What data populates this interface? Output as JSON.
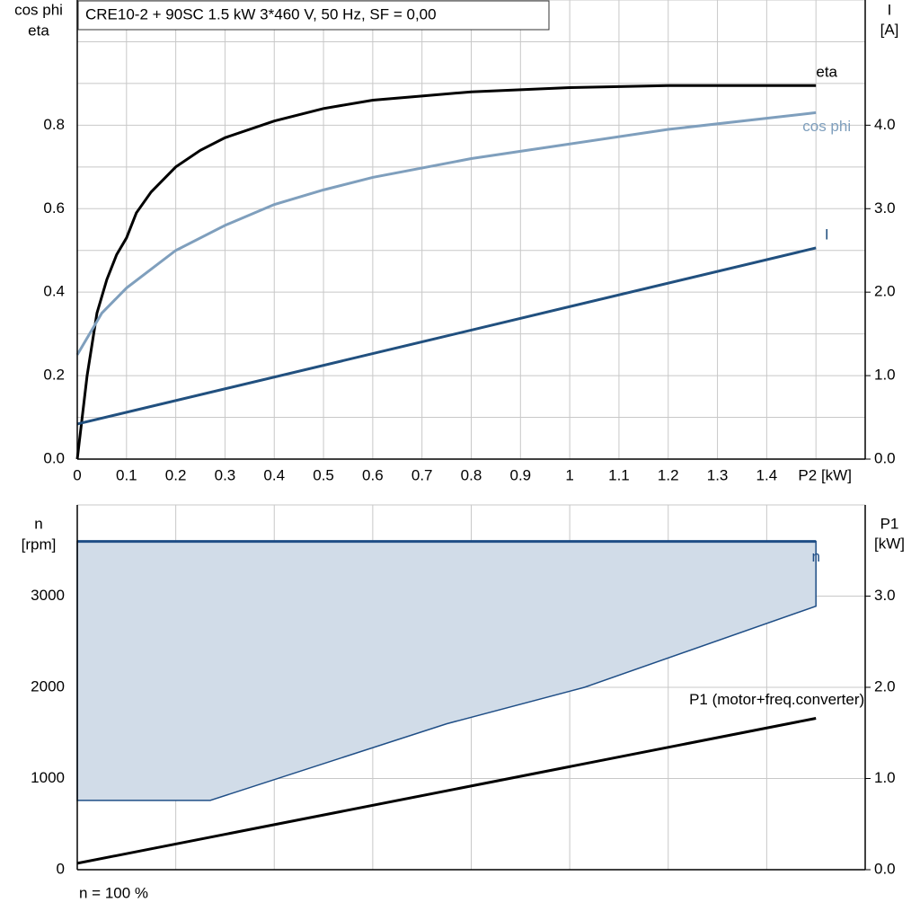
{
  "chart_data": [
    {
      "type": "line",
      "title": "CRE10-2 + 90SC   1.5 kW   3*460 V, 50 Hz, SF = 0,00",
      "ylabel": [
        "cos phi",
        "eta"
      ],
      "y2label": [
        "I",
        "[A]"
      ],
      "xlim": [
        0,
        1.6
      ],
      "xticks": [
        0,
        0.1,
        0.2,
        0.3,
        0.4,
        0.5,
        0.6,
        0.7,
        0.8,
        0.9,
        1.0,
        1.1,
        1.2,
        1.3,
        1.4,
        {
          "value": 1.5,
          "label": "P2 [kW]"
        }
      ],
      "ylim": [
        0,
        1.1
      ],
      "yticks": [
        {
          "value": 0,
          "label": "0.0"
        },
        0.2,
        0.4,
        0.6,
        0.8
      ],
      "y2lim": [
        0,
        5.5
      ],
      "y2ticks": [
        {
          "value": 0,
          "label": "0.0"
        },
        {
          "value": 1,
          "label": "1.0"
        },
        {
          "value": 2,
          "label": "2.0"
        },
        {
          "value": 3,
          "label": "3.0"
        },
        {
          "value": 4,
          "label": "4.0"
        }
      ],
      "grid": true,
      "minor_grid": true,
      "show_xtick_labels": true,
      "series": [
        {
          "name": "eta",
          "color": "#000000",
          "x": [
            0,
            0.02,
            0.04,
            0.06,
            0.08,
            0.1,
            0.12,
            0.15,
            0.2,
            0.25,
            0.3,
            0.4,
            0.5,
            0.6,
            0.7,
            0.8,
            1.0,
            1.2,
            1.5
          ],
          "values": [
            0,
            0.2,
            0.35,
            0.43,
            0.49,
            0.53,
            0.59,
            0.64,
            0.7,
            0.74,
            0.77,
            0.81,
            0.84,
            0.86,
            0.87,
            0.88,
            0.89,
            0.895,
            0.895
          ]
        },
        {
          "name": "cos phi",
          "color": "#7f9fbd",
          "x": [
            0,
            0.05,
            0.1,
            0.2,
            0.3,
            0.4,
            0.5,
            0.6,
            0.8,
            1.0,
            1.2,
            1.5
          ],
          "values": [
            0.25,
            0.35,
            0.41,
            0.5,
            0.56,
            0.61,
            0.645,
            0.675,
            0.72,
            0.755,
            0.79,
            0.83
          ]
        },
        {
          "name": "I",
          "color": "#21507f",
          "axis": "y2",
          "x": [
            0,
            1.5
          ],
          "values": [
            0.42,
            2.53
          ]
        }
      ]
    },
    {
      "type": "line",
      "ylabel": [
        "n",
        "[rpm]"
      ],
      "y2label": [
        "P1",
        "[kW]"
      ],
      "footer": "n = 100 %",
      "xlim": [
        0,
        1.6
      ],
      "xticks": [
        0.2,
        0.4,
        0.6,
        0.8,
        1.0,
        1.2,
        1.4
      ],
      "ylim": [
        0,
        4000
      ],
      "yticks": [
        0,
        1000,
        2000,
        3000
      ],
      "y2lim": [
        0,
        4
      ],
      "y2ticks": [
        {
          "value": 0,
          "label": "0.0"
        },
        {
          "value": 1,
          "label": "1.0"
        },
        {
          "value": 2,
          "label": "2.0"
        },
        {
          "value": 3,
          "label": "3.0"
        }
      ],
      "grid": true,
      "minor_grid": false,
      "show_xtick_labels": false,
      "range": {
        "color": "#d1dce8",
        "x": [
          0,
          0.27,
          0.75,
          1.03,
          1.5
        ],
        "values": [
          760,
          760,
          1600,
          2000,
          2890
        ]
      },
      "series": [
        {
          "name": "n",
          "color": "#1f4e86",
          "x": [
            0,
            1.5
          ],
          "values": [
            3600,
            3600
          ]
        },
        {
          "name": "P1 (motor+freq.converter)",
          "color": "#000000",
          "axis": "y2",
          "x": [
            0,
            1.5
          ],
          "values": [
            0.07,
            1.66
          ]
        }
      ]
    }
  ]
}
